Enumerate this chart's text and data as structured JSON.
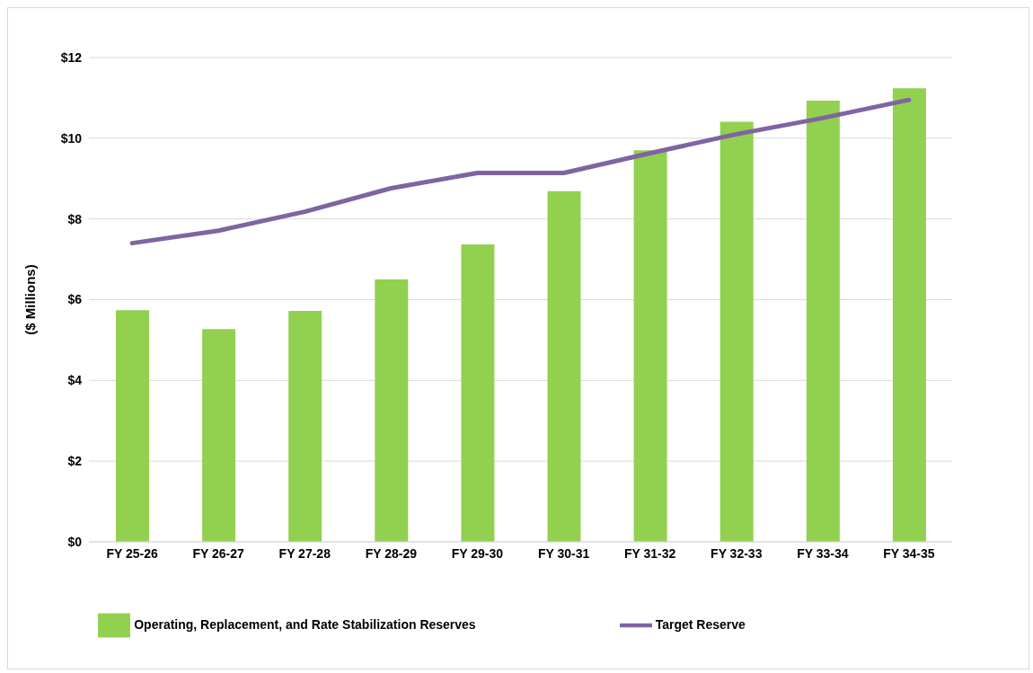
{
  "chart_data": {
    "type": "bar",
    "ylabel": "($ Millions)",
    "categories": [
      "FY 25-26",
      "FY 26-27",
      "FY 27-28",
      "FY 28-29",
      "FY 29-30",
      "FY 30-31",
      "FY 31-32",
      "FY 32-33",
      "FY 33-34",
      "FY 34-35"
    ],
    "series": [
      {
        "name": "Operating, Replacement, and Rate Stabilization Reserves",
        "color": "#92d050",
        "values": [
          5.74,
          5.27,
          5.72,
          6.5,
          7.37,
          8.69,
          9.7,
          10.41,
          10.93,
          11.24
        ]
      },
      {
        "name": "Target Reserve",
        "type": "line",
        "color": "#8064a2",
        "values": [
          7.4,
          7.71,
          8.18,
          8.76,
          9.14,
          9.14,
          9.63,
          10.1,
          10.5,
          10.95
        ]
      }
    ],
    "ylim": [
      0,
      12
    ],
    "yticks": [
      {
        "value": 0,
        "label": "$0"
      },
      {
        "value": 2,
        "label": "$2"
      },
      {
        "value": 4,
        "label": "$4"
      },
      {
        "value": 6,
        "label": "$6"
      },
      {
        "value": 8,
        "label": "$8"
      },
      {
        "value": 10,
        "label": "$10"
      },
      {
        "value": 12,
        "label": "$12"
      }
    ],
    "grid": "y",
    "legend": "bottom",
    "marker": "none"
  }
}
